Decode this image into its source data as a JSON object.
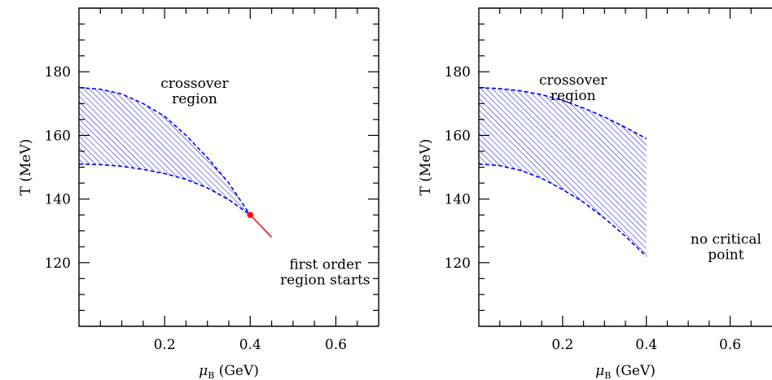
{
  "colors": {
    "band": "#0000ff",
    "first_order": "#ff0000",
    "axes": "#000000"
  },
  "chart_data": [
    {
      "type": "area",
      "panel": "left",
      "xlabel_symbol": "μ",
      "xlabel_sub": "B",
      "xlabel_unit": " (GeV)",
      "ylabel": "T (MeV)",
      "xlim": [
        0,
        0.7
      ],
      "ylim": [
        100,
        200
      ],
      "x_ticks": [
        0.2,
        0.4,
        0.6
      ],
      "x_tick_labels": [
        "0.2",
        "0.4",
        "0.6"
      ],
      "y_ticks": [
        120,
        140,
        160,
        180
      ],
      "y_tick_labels": [
        "120",
        "140",
        "160",
        "180"
      ],
      "grid": false,
      "series": [
        {
          "role": "crossover-upper",
          "x": [
            0,
            0.05,
            0.1,
            0.15,
            0.2,
            0.25,
            0.3,
            0.35,
            0.4
          ],
          "y": [
            175,
            174.5,
            173,
            170,
            166,
            160,
            153,
            145,
            135
          ]
        },
        {
          "role": "crossover-lower",
          "x": [
            0,
            0.05,
            0.1,
            0.15,
            0.2,
            0.25,
            0.3,
            0.35,
            0.4
          ],
          "y": [
            151,
            150.8,
            150.3,
            149.3,
            148,
            146.2,
            143.5,
            139.8,
            135
          ]
        },
        {
          "role": "first-order-line",
          "x": [
            0.4,
            0.45
          ],
          "y": [
            135,
            128
          ]
        }
      ],
      "critical_point": {
        "x": 0.4,
        "y": 135
      },
      "annotations": [
        {
          "id": "crossover",
          "lines": [
            "crossover",
            "region"
          ],
          "x": 0.27,
          "y": 175
        },
        {
          "id": "first-order",
          "lines": [
            "first order",
            "region starts"
          ],
          "x": 0.575,
          "y": 118
        }
      ]
    },
    {
      "type": "area",
      "panel": "right",
      "xlabel_symbol": "μ",
      "xlabel_sub": "B",
      "xlabel_unit": " (GeV)",
      "ylabel": "T (MeV)",
      "xlim": [
        0,
        0.7
      ],
      "ylim": [
        100,
        200
      ],
      "x_ticks": [
        0.2,
        0.4,
        0.6
      ],
      "x_tick_labels": [
        "0.2",
        "0.4",
        "0.6"
      ],
      "y_ticks": [
        120,
        140,
        160,
        180
      ],
      "y_tick_labels": [
        "120",
        "140",
        "160",
        "180"
      ],
      "grid": false,
      "series": [
        {
          "role": "crossover-upper",
          "x": [
            0,
            0.05,
            0.1,
            0.15,
            0.2,
            0.25,
            0.3,
            0.35,
            0.4
          ],
          "y": [
            175,
            174.7,
            174,
            172.8,
            171,
            168.6,
            165.8,
            162.5,
            159
          ]
        },
        {
          "role": "crossover-lower",
          "x": [
            0,
            0.05,
            0.1,
            0.15,
            0.2,
            0.25,
            0.3,
            0.35,
            0.4
          ],
          "y": [
            151,
            150.5,
            149,
            146.5,
            143,
            139,
            134,
            128.3,
            122
          ]
        }
      ],
      "annotations": [
        {
          "id": "crossover",
          "lines": [
            "crossover",
            "region"
          ],
          "x": 0.225,
          "y": 176
        },
        {
          "id": "no-critical",
          "lines": [
            "no critical",
            "point"
          ],
          "x": 0.59,
          "y": 126
        }
      ]
    }
  ]
}
